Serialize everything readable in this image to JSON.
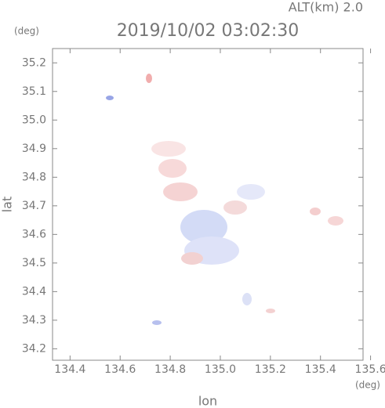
{
  "chart_data": {
    "type": "map",
    "title": "2019/10/02 03:02:30",
    "subtitle": "ALT(km) 2.0",
    "x_label": "lon",
    "y_label": "lat",
    "x_unit": "(deg)",
    "y_unit": "(deg)",
    "xlim": [
      134.33,
      135.57
    ],
    "ylim": [
      34.16,
      35.25
    ],
    "xticks": [
      134.4,
      134.6,
      134.8,
      {
        "value": 135.0,
        "label": "135.0"
      },
      135.2,
      135.4,
      135.6
    ],
    "yticks": [
      34.2,
      34.3,
      34.4,
      34.5,
      34.6,
      34.7,
      34.8,
      34.9,
      {
        "value": 35.0,
        "label": "35.0"
      },
      35.1,
      35.2
    ]
  }
}
